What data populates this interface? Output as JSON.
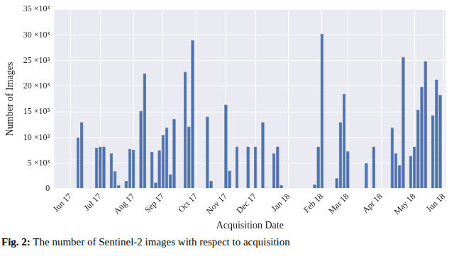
{
  "chart_data": {
    "type": "bar",
    "x_label": "Acquisition Date",
    "y_label": "Number of Images",
    "categories": [
      null,
      null,
      null,
      null,
      "Jun 17",
      null,
      null,
      null,
      null,
      null,
      null,
      null,
      "Jul 17",
      null,
      null,
      null,
      null,
      null,
      null,
      null,
      null,
      "Aug 17",
      null,
      null,
      null,
      null,
      null,
      null,
      null,
      "Sep 17",
      null,
      null,
      null,
      null,
      null,
      null,
      null,
      null,
      "Oct 17",
      null,
      null,
      null,
      null,
      null,
      null,
      null,
      "Nov 17",
      null,
      null,
      null,
      null,
      null,
      null,
      null,
      "Dec 17",
      null,
      null,
      null,
      null,
      null,
      null,
      null,
      null,
      "Jan 18",
      null,
      null,
      null,
      null,
      null,
      null,
      null,
      null,
      "Feb 18",
      null,
      null,
      null,
      null,
      null,
      null,
      "Mar 18",
      null,
      null,
      null,
      null,
      null,
      null,
      null,
      null,
      "Apr 18",
      null,
      null,
      null,
      null,
      null,
      null,
      null,
      null,
      "May 18",
      null,
      null,
      null,
      null,
      null,
      null,
      null,
      "Jun 18"
    ],
    "values": [
      null,
      null,
      null,
      null,
      null,
      null,
      10000,
      13000,
      null,
      null,
      null,
      8000,
      8200,
      8200,
      null,
      6900,
      3400,
      700,
      null,
      1500,
      7700,
      7600,
      null,
      15200,
      22500,
      null,
      7200,
      1200,
      7500,
      10500,
      11900,
      2800,
      13600,
      null,
      null,
      22800,
      12100,
      29000,
      null,
      null,
      null,
      14100,
      1500,
      null,
      null,
      null,
      16400,
      3500,
      null,
      8200,
      null,
      null,
      8200,
      null,
      8200,
      null,
      13000,
      200,
      null,
      6900,
      8200,
      700,
      null,
      null,
      null,
      null,
      null,
      null,
      null,
      null,
      800,
      8200,
      30200,
      null,
      null,
      null,
      2000,
      12900,
      18500,
      7300,
      null,
      null,
      null,
      null,
      5000,
      null,
      8200,
      null,
      null,
      null,
      null,
      11900,
      6900,
      4600,
      25700,
      null,
      6400,
      8200,
      15400,
      19900,
      24900,
      null,
      14300,
      21300,
      18300,
      null
    ],
    "color": "#4c72b0",
    "ylim": [
      0,
      35000
    ],
    "yticks": [
      0,
      {
        "value": 5000,
        "label": "5 ×10³"
      },
      {
        "value": 10000,
        "label": "10 ×10³"
      },
      {
        "value": 15000,
        "label": "15 ×10³"
      },
      {
        "value": 20000,
        "label": "20 ×10³"
      },
      {
        "value": 25000,
        "label": "25 ×10³"
      },
      {
        "value": 30000,
        "label": "30 ×10³"
      },
      {
        "value": 35000,
        "label": "35 ×10³"
      }
    ],
    "grid": true
  },
  "caption": {
    "label": "Fig. 2:",
    "text": "The number of Sentinel-2 images with respect to acquisition"
  }
}
